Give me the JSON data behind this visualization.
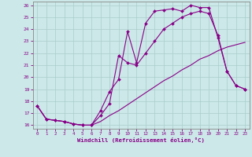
{
  "xlabel": "Windchill (Refroidissement éolien,°C)",
  "bg_color": "#cce8e8",
  "line_color": "#880088",
  "grid_color": "#aacccc",
  "xlim": [
    -0.5,
    23.5
  ],
  "ylim": [
    15.7,
    26.3
  ],
  "xticks": [
    0,
    1,
    2,
    3,
    4,
    5,
    6,
    7,
    8,
    9,
    10,
    11,
    12,
    13,
    14,
    15,
    16,
    17,
    18,
    19,
    20,
    21,
    22,
    23
  ],
  "yticks": [
    16,
    17,
    18,
    19,
    20,
    21,
    22,
    23,
    24,
    25,
    26
  ],
  "line1_x": [
    0,
    1,
    2,
    3,
    4,
    5,
    6,
    7,
    8,
    9,
    10,
    11,
    12,
    13,
    14,
    15,
    16,
    17,
    18,
    19,
    20,
    21,
    22,
    23
  ],
  "line1_y": [
    17.6,
    16.5,
    16.4,
    16.3,
    16.1,
    16.0,
    16.0,
    17.2,
    18.8,
    19.8,
    23.8,
    21.2,
    24.5,
    25.5,
    25.6,
    25.7,
    25.5,
    26.0,
    25.8,
    25.8,
    23.3,
    20.5,
    19.3,
    19.0
  ],
  "line1_markers": true,
  "line2_x": [
    0,
    1,
    2,
    3,
    4,
    5,
    6,
    7,
    8,
    9,
    10,
    11,
    12,
    13,
    14,
    15,
    16,
    17,
    18,
    19,
    20,
    21,
    22,
    23
  ],
  "line2_y": [
    17.6,
    16.5,
    16.4,
    16.3,
    16.1,
    16.0,
    16.0,
    16.8,
    17.8,
    21.8,
    21.2,
    21.0,
    22.0,
    23.0,
    24.0,
    24.5,
    25.0,
    25.3,
    25.5,
    25.3,
    23.5,
    20.5,
    19.3,
    19.0
  ],
  "line2_markers": true,
  "line3_x": [
    0,
    1,
    2,
    3,
    4,
    5,
    6,
    7,
    8,
    9,
    10,
    11,
    12,
    13,
    14,
    15,
    16,
    17,
    18,
    19,
    20,
    21,
    22,
    23
  ],
  "line3_y": [
    17.6,
    16.5,
    16.4,
    16.3,
    16.1,
    16.0,
    16.0,
    16.3,
    16.8,
    17.2,
    17.7,
    18.2,
    18.7,
    19.2,
    19.7,
    20.1,
    20.6,
    21.0,
    21.5,
    21.8,
    22.2,
    22.5,
    22.7,
    22.9
  ],
  "line3_markers": false
}
